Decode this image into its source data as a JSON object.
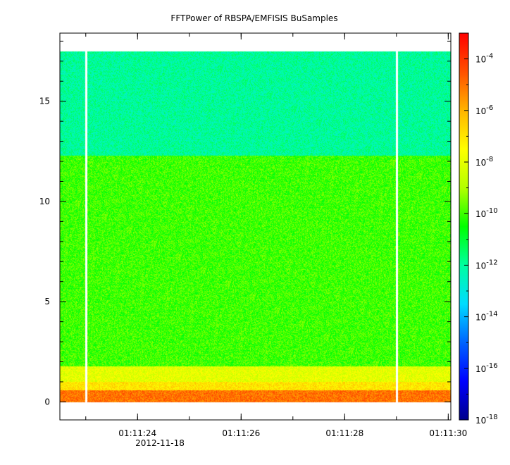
{
  "chart_data": {
    "type": "heatmap",
    "title": "FFTPower of RBSPA/EMFISIS  BuSamples",
    "xlabel": "",
    "ylabel": "",
    "x_ticks": [
      "01:11:24",
      "01:11:26",
      "01:11:28",
      "01:11:30"
    ],
    "x_date_label": "2012-11-18",
    "x_range_seconds": [
      22.5,
      30.05
    ],
    "y_ticks": [
      0,
      5,
      10,
      15
    ],
    "ylim": [
      -0.9,
      18.4
    ],
    "data_frequency_max": 17.5,
    "data_gaps_x": [
      "01:11:23.0",
      "01:11:29.0"
    ],
    "colorbar": {
      "scale": "log",
      "range": [
        1e-18,
        0.001
      ],
      "tick_bases": [
        "10",
        "10",
        "10",
        "10",
        "10",
        "10",
        "10",
        "10"
      ],
      "tick_exponents": [
        "-18",
        "-16",
        "-14",
        "-12",
        "-10",
        "-8",
        "-6",
        "-4"
      ],
      "tick_values": [
        1e-18,
        1e-16,
        1e-14,
        1e-12,
        1e-10,
        1e-08,
        1e-06,
        0.0001
      ],
      "colors": [
        "#00008c",
        "#0000ff",
        "#0064ff",
        "#00dcff",
        "#00ffa0",
        "#00ff00",
        "#b4ff00",
        "#ffff00",
        "#ffb400",
        "#ff5000",
        "#ff0000"
      ]
    },
    "bands": [
      {
        "f_low": 12.3,
        "f_high": 17.5,
        "level": 1e-12
      },
      {
        "f_low": 1.8,
        "f_high": 12.3,
        "level": 1e-10
      },
      {
        "f_low": 1.0,
        "f_high": 1.8,
        "level": 1e-08
      },
      {
        "f_low": 0.6,
        "f_high": 1.0,
        "level": 1e-07
      },
      {
        "f_low": 0.0,
        "f_high": 0.6,
        "level": 1e-05
      }
    ],
    "grid": false,
    "legend": "none"
  }
}
